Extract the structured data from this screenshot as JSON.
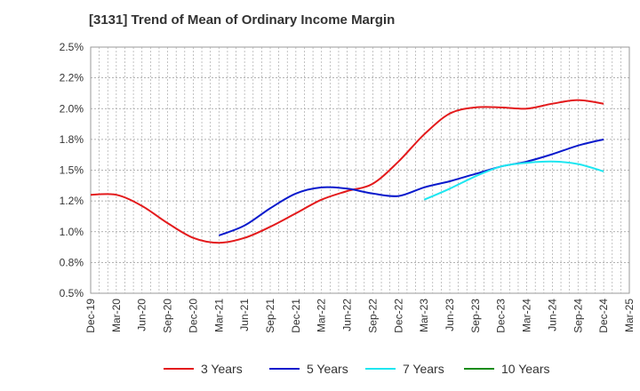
{
  "chart_data": {
    "type": "line",
    "title": "[3131]  Trend of Mean of Ordinary Income Margin",
    "xlabel": "",
    "ylabel": "",
    "y_tick_labels": [
      "2.5%",
      "2.2%",
      "2.0%",
      "1.8%",
      "1.5%",
      "1.2%",
      "1.0%",
      "0.8%",
      "0.5%"
    ],
    "ylim": [
      0.5,
      2.5
    ],
    "x": [
      "Dec-19",
      "Mar-20",
      "Jun-20",
      "Sep-20",
      "Dec-20",
      "Mar-21",
      "Jun-21",
      "Sep-21",
      "Dec-21",
      "Mar-22",
      "Jun-22",
      "Sep-22",
      "Dec-22",
      "Mar-23",
      "Jun-23",
      "Sep-23",
      "Dec-23",
      "Mar-24",
      "Jun-24",
      "Sep-24",
      "Dec-24",
      "Mar-25"
    ],
    "grid": true,
    "legend_position": "bottom",
    "series": [
      {
        "name": "3 Years",
        "color": "#e31a1c",
        "values": [
          1.3,
          1.3,
          1.21,
          1.07,
          0.95,
          0.91,
          0.95,
          1.04,
          1.15,
          1.26,
          1.33,
          1.39,
          1.57,
          1.79,
          1.96,
          2.01,
          2.01,
          2.0,
          2.04,
          2.07,
          2.04,
          null
        ]
      },
      {
        "name": "5 Years",
        "color": "#0a1acc",
        "values": [
          null,
          null,
          null,
          null,
          null,
          0.97,
          1.05,
          1.19,
          1.31,
          1.36,
          1.35,
          1.31,
          1.29,
          1.36,
          1.41,
          1.47,
          1.53,
          1.57,
          1.63,
          1.7,
          1.75,
          null
        ]
      },
      {
        "name": "7 Years",
        "color": "#1ee6f0",
        "values": [
          null,
          null,
          null,
          null,
          null,
          null,
          null,
          null,
          null,
          null,
          null,
          null,
          null,
          1.26,
          1.35,
          1.45,
          1.53,
          1.56,
          1.57,
          1.55,
          1.49,
          null
        ]
      },
      {
        "name": "10 Years",
        "color": "#1a8c1a",
        "values": [
          null,
          null,
          null,
          null,
          null,
          null,
          null,
          null,
          null,
          null,
          null,
          null,
          null,
          null,
          null,
          null,
          null,
          null,
          null,
          null,
          null,
          null
        ]
      }
    ]
  }
}
